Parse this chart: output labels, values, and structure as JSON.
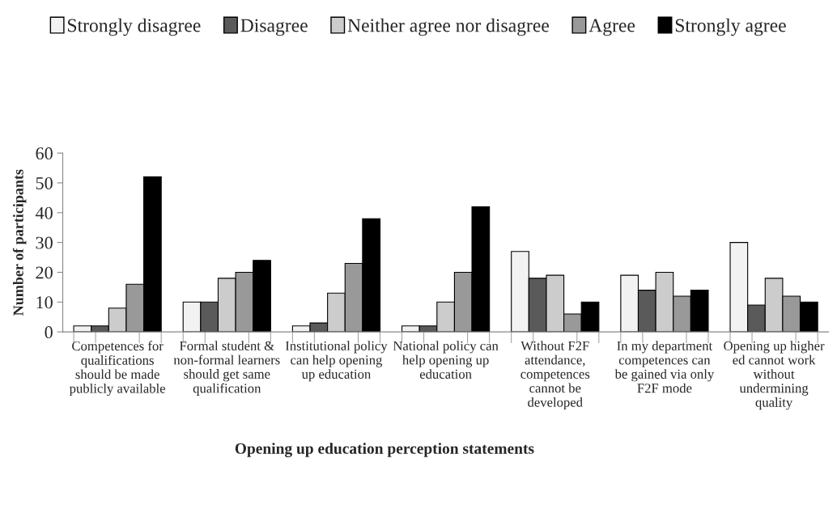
{
  "chart_data": {
    "type": "bar",
    "xlabel": "Opening up education perception statements",
    "ylabel": "Number of participants",
    "categories": [
      "Competences for\nqualifications\nshould be made\npublicly available",
      "Formal student &\nnon-formal learners\nshould get same\nqualification",
      "Institutional policy\ncan help opening\nup education",
      "National policy can\nhelp opening up\neducation",
      "Without F2F\nattendance,\ncompetences\ncannot be\ndeveloped",
      "In my department\ncompetences can\nbe gained via only\nF2F mode",
      "Opening up higher\ned cannot work\nwithout\nundermining\nquality"
    ],
    "series": [
      {
        "name": "Strongly disagree",
        "color": "#f2f2f2",
        "values": [
          2,
          10,
          2,
          2,
          27,
          19,
          30
        ]
      },
      {
        "name": "Disagree",
        "color": "#5a5a5a",
        "values": [
          2,
          10,
          3,
          2,
          18,
          14,
          9
        ]
      },
      {
        "name": "Neither agree nor disagree",
        "color": "#cccccc",
        "values": [
          8,
          18,
          13,
          10,
          19,
          20,
          18
        ]
      },
      {
        "name": "Agree",
        "color": "#999999",
        "values": [
          16,
          20,
          23,
          20,
          6,
          12,
          12
        ]
      },
      {
        "name": "Strongly agree",
        "color": "#000000",
        "values": [
          52,
          24,
          38,
          42,
          10,
          14,
          10
        ]
      }
    ],
    "ylim": [
      0,
      60
    ],
    "yticks": [
      0,
      10,
      20,
      30,
      40,
      50,
      60
    ],
    "grid": false,
    "legend": "top"
  }
}
